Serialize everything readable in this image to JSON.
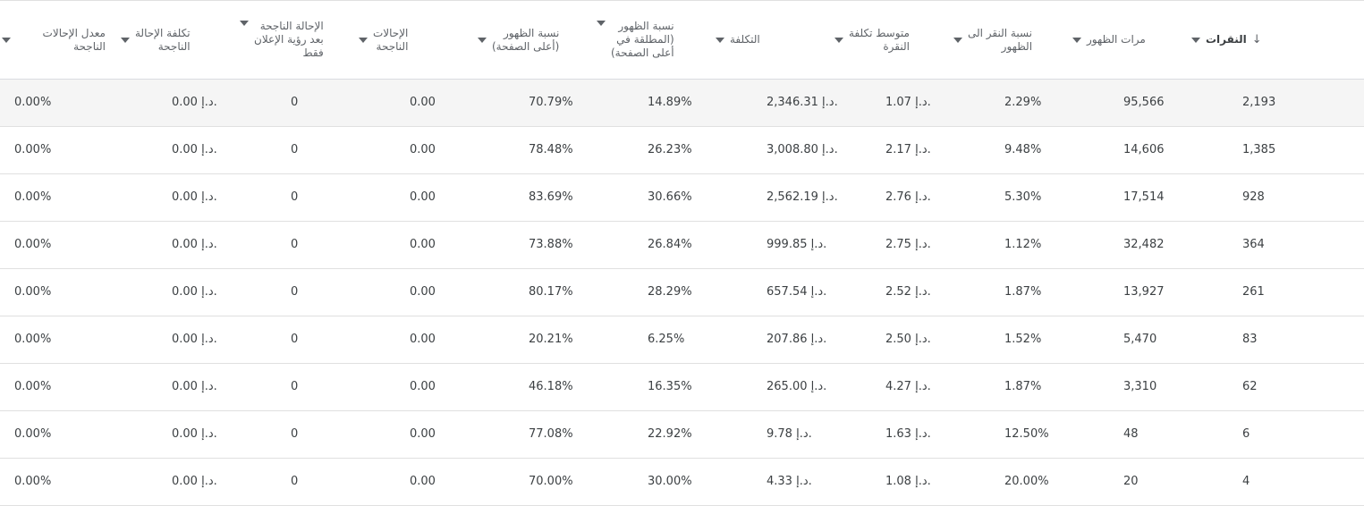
{
  "table": {
    "columns": [
      {
        "key": "clicks",
        "label": "النقرات",
        "sorted": true
      },
      {
        "key": "impressions",
        "label": "مرات الظهور"
      },
      {
        "key": "ctr",
        "label": "نسبة النقر الى\nالظهور"
      },
      {
        "key": "avg_cpc",
        "label": "متوسط تكلفة\nالنقرة"
      },
      {
        "key": "cost",
        "label": "التكلفة"
      },
      {
        "key": "abs_top_rate",
        "label": "نسبة الظهور\n(المطلقة في\nأعلى الصفحة)"
      },
      {
        "key": "top_rate",
        "label": "نسبة الظهور\n(أعلى الصفحة)"
      },
      {
        "key": "conversions",
        "label": "الإحالات\nالناجحة"
      },
      {
        "key": "view_through_conv",
        "label": "الإحالة الناجحة\nبعد رؤية الإعلان\nفقط"
      },
      {
        "key": "cost_per_conv",
        "label": "تكلفة الإحالة\nالناجحة"
      },
      {
        "key": "conv_rate",
        "label": "معدل الإحالات الناجحة"
      }
    ],
    "rows": [
      {
        "clicks": "2,193",
        "impressions": "95,566",
        "ctr": "2.29%",
        "avg_cpc": "1.07 د.إ.",
        "cost": "2,346.31 د.إ.",
        "abs_top_rate": "14.89%",
        "top_rate": "70.79%",
        "conversions": "0.00",
        "view_through_conv": "0",
        "cost_per_conv": "0.00 د.إ.",
        "conv_rate": "0.00%"
      },
      {
        "clicks": "1,385",
        "impressions": "14,606",
        "ctr": "9.48%",
        "avg_cpc": "2.17 د.إ.",
        "cost": "3,008.80 د.إ.",
        "abs_top_rate": "26.23%",
        "top_rate": "78.48%",
        "conversions": "0.00",
        "view_through_conv": "0",
        "cost_per_conv": "0.00 د.إ.",
        "conv_rate": "0.00%"
      },
      {
        "clicks": "928",
        "impressions": "17,514",
        "ctr": "5.30%",
        "avg_cpc": "2.76 د.إ.",
        "cost": "2,562.19 د.إ.",
        "abs_top_rate": "30.66%",
        "top_rate": "83.69%",
        "conversions": "0.00",
        "view_through_conv": "0",
        "cost_per_conv": "0.00 د.إ.",
        "conv_rate": "0.00%"
      },
      {
        "clicks": "364",
        "impressions": "32,482",
        "ctr": "1.12%",
        "avg_cpc": "2.75 د.إ.",
        "cost": "999.85 د.إ.",
        "abs_top_rate": "26.84%",
        "top_rate": "73.88%",
        "conversions": "0.00",
        "view_through_conv": "0",
        "cost_per_conv": "0.00 د.إ.",
        "conv_rate": "0.00%"
      },
      {
        "clicks": "261",
        "impressions": "13,927",
        "ctr": "1.87%",
        "avg_cpc": "2.52 د.إ.",
        "cost": "657.54 د.إ.",
        "abs_top_rate": "28.29%",
        "top_rate": "80.17%",
        "conversions": "0.00",
        "view_through_conv": "0",
        "cost_per_conv": "0.00 د.إ.",
        "conv_rate": "0.00%"
      },
      {
        "clicks": "83",
        "impressions": "5,470",
        "ctr": "1.52%",
        "avg_cpc": "2.50 د.إ.",
        "cost": "207.86 د.إ.",
        "abs_top_rate": "6.25%",
        "top_rate": "20.21%",
        "conversions": "0.00",
        "view_through_conv": "0",
        "cost_per_conv": "0.00 د.إ.",
        "conv_rate": "0.00%"
      },
      {
        "clicks": "62",
        "impressions": "3,310",
        "ctr": "1.87%",
        "avg_cpc": "4.27 د.إ.",
        "cost": "265.00 د.إ.",
        "abs_top_rate": "16.35%",
        "top_rate": "46.18%",
        "conversions": "0.00",
        "view_through_conv": "0",
        "cost_per_conv": "0.00 د.إ.",
        "conv_rate": "0.00%"
      },
      {
        "clicks": "6",
        "impressions": "48",
        "ctr": "12.50%",
        "avg_cpc": "1.63 د.إ.",
        "cost": "9.78 د.إ.",
        "abs_top_rate": "22.92%",
        "top_rate": "77.08%",
        "conversions": "0.00",
        "view_through_conv": "0",
        "cost_per_conv": "0.00 د.إ.",
        "conv_rate": "0.00%"
      },
      {
        "clicks": "4",
        "impressions": "20",
        "ctr": "20.00%",
        "avg_cpc": "1.08 د.إ.",
        "cost": "4.33 د.إ.",
        "abs_top_rate": "30.00%",
        "top_rate": "70.00%",
        "conversions": "0.00",
        "view_through_conv": "0",
        "cost_per_conv": "0.00 د.إ.",
        "conv_rate": "0.00%"
      }
    ]
  }
}
